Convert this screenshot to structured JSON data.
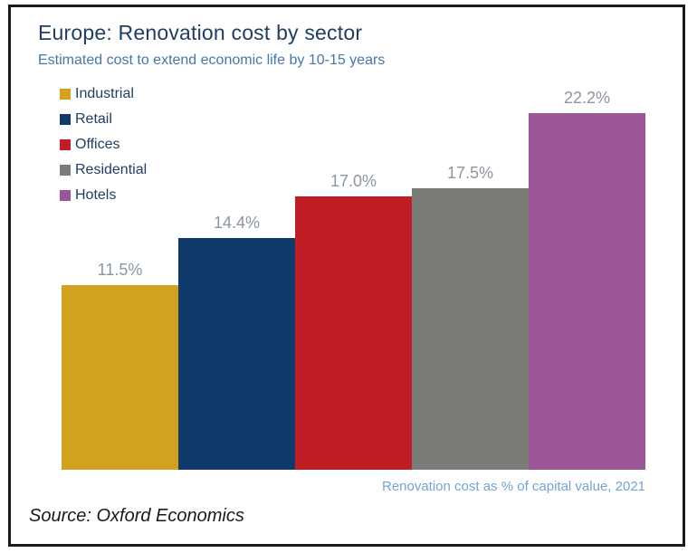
{
  "chart": {
    "title": "Europe: Renovation cost by sector",
    "subtitle": "Estimated cost to extend economic life by 10-15 years",
    "axis_note": "Renovation cost as % of capital value, 2021",
    "source": "Source: Oxford Economics"
  },
  "chart_data": {
    "type": "bar",
    "title": "Europe: Renovation cost by sector",
    "subtitle": "Estimated cost to extend economic life by 10-15 years",
    "note": "Renovation cost as % of capital value, 2021",
    "source": "Source: Oxford Economics",
    "categories": [
      "Industrial",
      "Retail",
      "Offices",
      "Residential",
      "Hotels"
    ],
    "values": [
      11.5,
      14.4,
      17.0,
      17.5,
      22.2
    ],
    "value_labels": [
      "11.5%",
      "14.4%",
      "17.0%",
      "17.5%",
      "22.2%"
    ],
    "bar_colors": [
      "#D2A21E",
      "#0F3A6B",
      "#BE1E24",
      "#7A7C78",
      "#9A5697"
    ],
    "ylim": [
      0,
      22.5
    ],
    "grid": false,
    "legend_position": "top-left-vertical",
    "xlabel": "",
    "ylabel": ""
  },
  "colors": {
    "title_text": "#1F3E64",
    "subtitle_text": "#4478AD",
    "value_label_text": "#8C95A0",
    "axis_note_text": "#74A3D4",
    "source_text": "#1a1a1a",
    "border": "#1a1a1a"
  }
}
